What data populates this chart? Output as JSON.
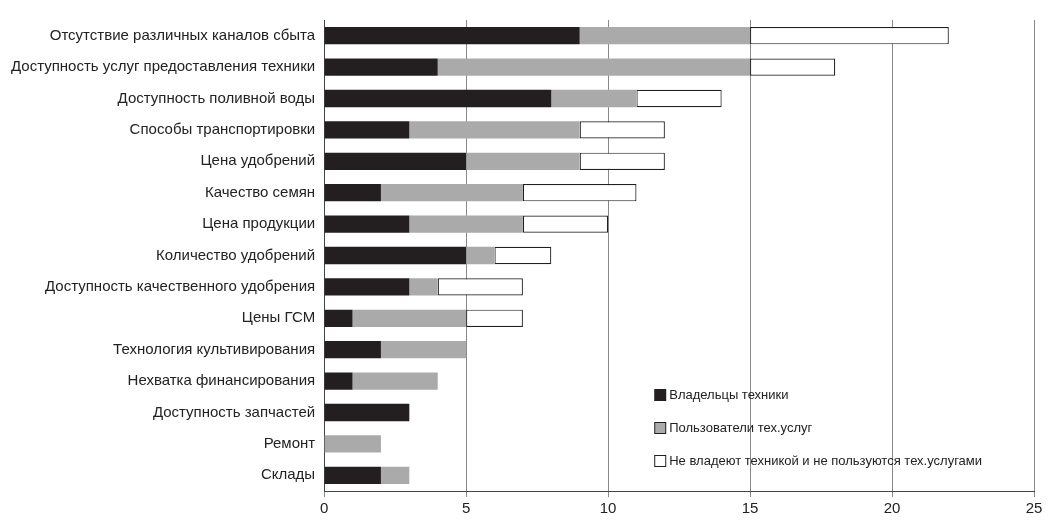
{
  "chart_data": {
    "type": "bar",
    "orientation": "horizontal",
    "stacked": true,
    "categories": [
      "Отсутствие различных каналов сбыта",
      "Доступность услуг предоставления техники",
      "Доступность поливной воды",
      "Способы транспортировки",
      "Цена удобрений",
      "Качество семян",
      "Цена продукции",
      "Количество удобрений",
      "Доступность качественного удобрения",
      "Цены ГСМ",
      "Технология культивирования",
      "Нехватка финансирования",
      "Доступность запчастей",
      "Ремонт",
      "Склады"
    ],
    "series": [
      {
        "name": "Владельцы техники",
        "color": "#231f20",
        "values": [
          9,
          4,
          8,
          3,
          5,
          2,
          3,
          5,
          3,
          1,
          2,
          1,
          3,
          0,
          2
        ]
      },
      {
        "name": "Пользователи тех.услуг",
        "color": "#aaaaaa",
        "values": [
          6,
          11,
          3,
          6,
          4,
          5,
          4,
          1,
          1,
          4,
          3,
          3,
          0,
          2,
          1
        ]
      },
      {
        "name": "Не владеют техникой и не пользуются тех.услугами",
        "color": "#ffffff",
        "values": [
          7,
          3,
          3,
          3,
          3,
          4,
          3,
          2,
          3,
          2,
          0,
          0,
          0,
          0,
          0
        ]
      }
    ],
    "xlim": [
      0,
      25
    ],
    "xticks": [
      0,
      5,
      10,
      15,
      20,
      25
    ],
    "grid": "x",
    "legend": "bottom right"
  }
}
